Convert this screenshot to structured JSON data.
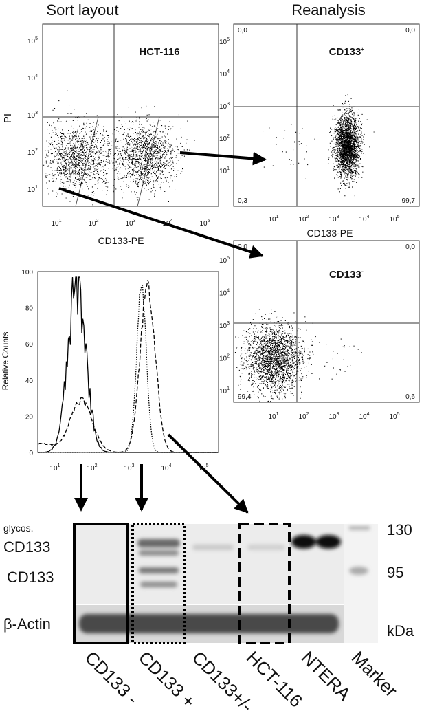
{
  "sort_layout": {
    "title": "Sort layout",
    "y_label": "PI",
    "x_label": "CD133-PE",
    "gate_label": "HCT-116",
    "x_ticks": [
      {
        "base": "10",
        "exp": "1"
      },
      {
        "base": "10",
        "exp": "2"
      },
      {
        "base": "10",
        "exp": "3"
      },
      {
        "base": "10",
        "exp": "4"
      },
      {
        "base": "10",
        "exp": "5"
      }
    ],
    "y_ticks": [
      {
        "base": "10",
        "exp": "1"
      },
      {
        "base": "10",
        "exp": "2"
      },
      {
        "base": "10",
        "exp": "3"
      },
      {
        "base": "10",
        "exp": "4"
      },
      {
        "base": "10",
        "exp": "5"
      }
    ]
  },
  "reanalysis": {
    "title": "Reanalysis",
    "positive": {
      "label": "CD133",
      "sup": "+",
      "quadrants": [
        "0,0",
        "0,0",
        "0,3",
        "99,7"
      ],
      "x_label": "CD133-PE",
      "x_ticks": [
        {
          "base": "10",
          "exp": "1"
        },
        {
          "base": "10",
          "exp": "2"
        },
        {
          "base": "10",
          "exp": "3"
        },
        {
          "base": "10",
          "exp": "4"
        },
        {
          "base": "10",
          "exp": "5"
        }
      ],
      "y_ticks": [
        {
          "base": "10",
          "exp": "1"
        },
        {
          "base": "10",
          "exp": "2"
        },
        {
          "base": "10",
          "exp": "3"
        },
        {
          "base": "10",
          "exp": "4"
        },
        {
          "base": "10",
          "exp": "5"
        }
      ]
    },
    "negative": {
      "label": "CD133",
      "sup": "-",
      "quadrants": [
        "0,0",
        "0,0",
        "99,4",
        "0,6"
      ],
      "x_ticks": [
        {
          "base": "10",
          "exp": "1"
        },
        {
          "base": "10",
          "exp": "2"
        },
        {
          "base": "10",
          "exp": "3"
        },
        {
          "base": "10",
          "exp": "4"
        },
        {
          "base": "10",
          "exp": "5"
        }
      ],
      "y_ticks": [
        {
          "base": "10",
          "exp": "1"
        },
        {
          "base": "10",
          "exp": "2"
        },
        {
          "base": "10",
          "exp": "3"
        },
        {
          "base": "10",
          "exp": "4"
        },
        {
          "base": "10",
          "exp": "5"
        }
      ]
    }
  },
  "histogram": {
    "y_label": "Relative Counts",
    "y_ticks": [
      "0",
      "20",
      "40",
      "60",
      "80",
      "100"
    ],
    "x_ticks": [
      {
        "base": "10",
        "exp": "1"
      },
      {
        "base": "10",
        "exp": "2"
      },
      {
        "base": "10",
        "exp": "3"
      },
      {
        "base": "10",
        "exp": "4"
      },
      {
        "base": "10",
        "exp": "5"
      }
    ]
  },
  "blot": {
    "row_labels": [
      "glycos.",
      "CD133",
      "CD133",
      "β-Actin"
    ],
    "markers": [
      "130",
      "95"
    ],
    "unit": "kDa",
    "lanes": [
      "CD133 -",
      "CD133 +",
      "CD133+/-",
      "HCT-116",
      "NTERA",
      "Marker"
    ]
  }
}
